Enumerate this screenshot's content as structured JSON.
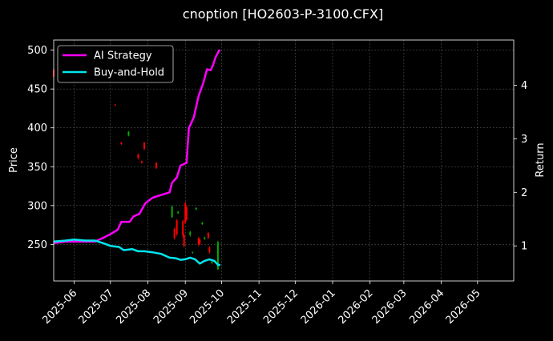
{
  "chart_data": {
    "type": "line",
    "title": "cnoption [HO2603-P-3100.CFX]",
    "xlabel": "",
    "ylabel": "Price",
    "y2label": "Return",
    "xlim": [
      "2025-05-15",
      "2026-05-31"
    ],
    "ylim": [
      203,
      513
    ],
    "y2lim": [
      0.345,
      4.845
    ],
    "x_ticks": [
      "2025-06",
      "2025-07",
      "2025-08",
      "2025-09",
      "2025-10",
      "2025-11",
      "2025-12",
      "2026-01",
      "2026-02",
      "2026-03",
      "2026-04",
      "2026-05"
    ],
    "y_ticks": [
      250,
      300,
      350,
      400,
      450,
      500
    ],
    "y2_ticks": [
      1,
      2,
      3,
      4
    ],
    "grid": true,
    "legend": "top-left",
    "colors": {
      "background": "#000000",
      "up": "#00b000",
      "down": "#ff0000",
      "grid": "#666666"
    },
    "series": [
      {
        "name": "AI Strategy",
        "axis": "right",
        "color": "#ff00ff",
        "x": [
          "2025-05-15",
          "2025-05-25",
          "2025-06-01",
          "2025-06-10",
          "2025-06-18",
          "2025-06-25",
          "2025-07-01",
          "2025-07-07",
          "2025-07-10",
          "2025-07-17",
          "2025-07-20",
          "2025-07-25",
          "2025-07-30",
          "2025-08-05",
          "2025-08-12",
          "2025-08-19",
          "2025-08-21",
          "2025-08-25",
          "2025-08-28",
          "2025-09-02",
          "2025-09-04",
          "2025-09-08",
          "2025-09-12",
          "2025-09-16",
          "2025-09-19",
          "2025-09-22",
          "2025-09-24",
          "2025-09-26",
          "2025-09-29",
          "2025-09-30"
        ],
        "values": [
          1.05,
          1.08,
          1.08,
          1.08,
          1.08,
          1.15,
          1.22,
          1.3,
          1.45,
          1.45,
          1.55,
          1.6,
          1.8,
          1.9,
          1.95,
          2.0,
          2.18,
          2.28,
          2.5,
          2.55,
          3.2,
          3.4,
          3.8,
          4.05,
          4.3,
          4.28,
          4.38,
          4.52,
          4.65,
          4.65
        ]
      },
      {
        "name": "Buy-and-Hold",
        "axis": "right",
        "color": "#00e5ee",
        "x": [
          "2025-05-15",
          "2025-05-25",
          "2025-06-01",
          "2025-06-10",
          "2025-06-18",
          "2025-06-25",
          "2025-07-01",
          "2025-07-08",
          "2025-07-12",
          "2025-07-19",
          "2025-07-24",
          "2025-07-29",
          "2025-08-05",
          "2025-08-12",
          "2025-08-19",
          "2025-08-24",
          "2025-08-28",
          "2025-09-01",
          "2025-09-05",
          "2025-09-09",
          "2025-09-13",
          "2025-09-17",
          "2025-09-21",
          "2025-09-25",
          "2025-09-28",
          "2025-09-30"
        ],
        "values": [
          1.08,
          1.1,
          1.12,
          1.1,
          1.1,
          1.05,
          1.0,
          0.98,
          0.92,
          0.94,
          0.9,
          0.9,
          0.88,
          0.85,
          0.78,
          0.77,
          0.74,
          0.75,
          0.78,
          0.75,
          0.67,
          0.72,
          0.75,
          0.72,
          0.65,
          0.64
        ]
      }
    ],
    "candles": [
      {
        "x": "2025-05-15",
        "open": 475,
        "close": 466,
        "high": 477,
        "low": 464
      },
      {
        "x": "2025-07-05",
        "open": 430,
        "close": 429,
        "high": 431,
        "low": 428
      },
      {
        "x": "2025-07-10",
        "open": 381,
        "close": 379,
        "high": 382,
        "low": 378
      },
      {
        "x": "2025-07-16",
        "open": 390,
        "close": 395,
        "high": 396,
        "low": 389
      },
      {
        "x": "2025-07-24",
        "open": 366,
        "close": 361,
        "high": 367,
        "low": 359
      },
      {
        "x": "2025-07-27",
        "open": 357,
        "close": 355,
        "high": 358,
        "low": 354
      },
      {
        "x": "2025-07-29",
        "open": 381,
        "close": 373,
        "high": 382,
        "low": 371
      },
      {
        "x": "2025-08-08",
        "open": 355,
        "close": 348,
        "high": 356,
        "low": 347
      },
      {
        "x": "2025-08-21",
        "open": 285,
        "close": 299,
        "high": 300,
        "low": 284
      },
      {
        "x": "2025-08-23",
        "open": 270,
        "close": 258,
        "high": 272,
        "low": 256
      },
      {
        "x": "2025-08-25",
        "open": 281,
        "close": 263,
        "high": 283,
        "low": 261
      },
      {
        "x": "2025-08-26",
        "open": 290,
        "close": 292,
        "high": 293,
        "low": 289
      },
      {
        "x": "2025-08-30",
        "open": 280,
        "close": 262,
        "high": 282,
        "low": 259
      },
      {
        "x": "2025-08-31",
        "open": 262,
        "close": 248,
        "high": 264,
        "low": 246
      },
      {
        "x": "2025-09-01",
        "open": 303,
        "close": 278,
        "high": 305,
        "low": 276
      },
      {
        "x": "2025-09-02",
        "open": 298,
        "close": 282,
        "high": 300,
        "low": 280
      },
      {
        "x": "2025-09-05",
        "open": 262,
        "close": 266,
        "high": 268,
        "low": 260
      },
      {
        "x": "2025-09-07",
        "open": 239,
        "close": 240,
        "high": 241,
        "low": 238
      },
      {
        "x": "2025-09-10",
        "open": 295,
        "close": 297,
        "high": 298,
        "low": 294
      },
      {
        "x": "2025-09-12",
        "open": 258,
        "close": 250,
        "high": 260,
        "low": 248
      },
      {
        "x": "2025-09-13",
        "open": 256,
        "close": 251,
        "high": 258,
        "low": 249
      },
      {
        "x": "2025-09-15",
        "open": 276,
        "close": 278,
        "high": 279,
        "low": 275
      },
      {
        "x": "2025-09-17",
        "open": 257,
        "close": 259,
        "high": 260,
        "low": 256
      },
      {
        "x": "2025-09-20",
        "open": 265,
        "close": 258,
        "high": 266,
        "low": 257
      },
      {
        "x": "2025-09-21",
        "open": 246,
        "close": 240,
        "high": 248,
        "low": 238
      },
      {
        "x": "2025-09-23",
        "open": 226,
        "close": 228,
        "high": 229,
        "low": 225
      },
      {
        "x": "2025-09-28",
        "open": 218,
        "close": 253,
        "high": 255,
        "low": 217
      }
    ]
  }
}
